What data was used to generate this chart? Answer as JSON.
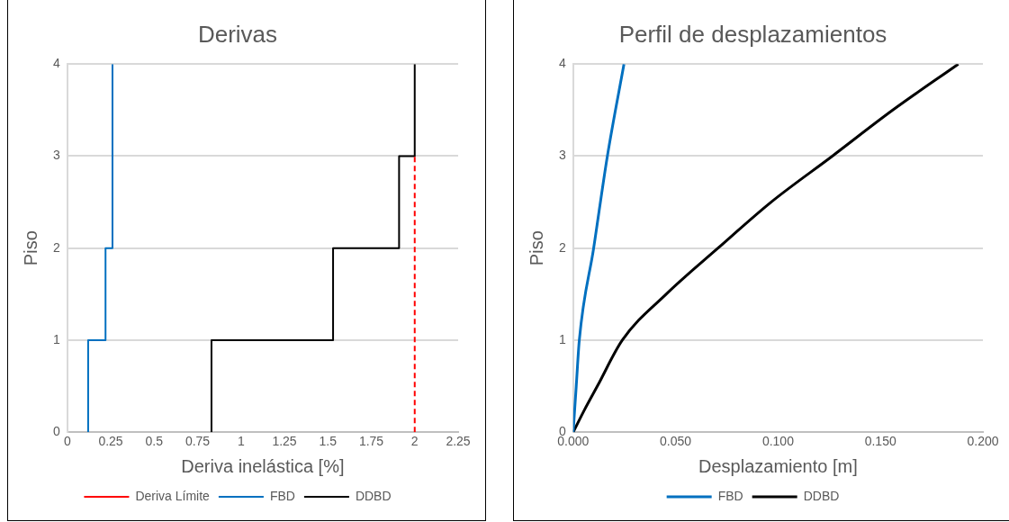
{
  "chart_data": [
    {
      "type": "line",
      "title": "Derivas",
      "xlabel": "Deriva inelástica [%]",
      "ylabel": "Piso",
      "xlim": [
        0,
        2.25
      ],
      "xticks": [
        0,
        0.25,
        0.5,
        0.75,
        1,
        1.25,
        1.5,
        1.75,
        2,
        2.25
      ],
      "ylim": [
        0,
        4
      ],
      "yticks": [
        0,
        1,
        2,
        3,
        4
      ],
      "grid": "y",
      "legend": "bottom",
      "marker": "none",
      "series": [
        {
          "name": "Deriva Límite",
          "color": "#ff0000",
          "line_style": "dashed",
          "x": [
            2,
            2
          ],
          "values": [
            0,
            3
          ]
        },
        {
          "name": "FBD",
          "color": "#0070c0",
          "x": [
            0.12,
            0.12,
            0.22,
            0.22,
            0.26,
            0.26
          ],
          "values": [
            0,
            1,
            1,
            2,
            2,
            4
          ]
        },
        {
          "name": "DDBD",
          "color": "#000000",
          "x": [
            0.83,
            0.83,
            1.53,
            1.53,
            1.91,
            1.91,
            2,
            2
          ],
          "values": [
            0,
            1,
            1,
            2,
            2,
            3,
            3,
            4
          ]
        }
      ]
    },
    {
      "type": "line",
      "title": "Perfil de desplazamientos",
      "xlabel": "Desplazamiento [m]",
      "ylabel": "Piso",
      "xlim": [
        0,
        0.2
      ],
      "xticks": [
        {
          "value": 0,
          "label": "0.000"
        },
        {
          "value": 0.05,
          "label": "0.050"
        },
        {
          "value": 0.1,
          "label": "0.100"
        },
        {
          "value": 0.15,
          "label": "0.150"
        },
        {
          "value": 0.2,
          "label": "0.200"
        }
      ],
      "ylim": [
        0,
        4
      ],
      "yticks": [
        0,
        1,
        2,
        3,
        4
      ],
      "grid": "y",
      "legend": "bottom",
      "marker": "none",
      "series": [
        {
          "name": "FBD",
          "color": "#0070c0",
          "x": [
            0,
            0.0015,
            0.003,
            0.01,
            0.0167,
            0.0248
          ],
          "values": [
            0,
            0.5,
            1,
            2,
            3,
            4
          ]
        },
        {
          "name": "DDBD",
          "color": "#000000",
          "x": [
            0,
            0.0057,
            0.0118,
            0.024,
            0.0454,
            0.0707,
            0.0966,
            0.1265,
            0.156,
            0.188
          ],
          "values": [
            0,
            0.25,
            0.5,
            1,
            1.5,
            2,
            2.5,
            3,
            3.5,
            4
          ]
        }
      ]
    }
  ]
}
